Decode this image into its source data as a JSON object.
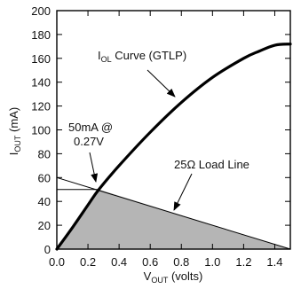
{
  "chart_data": {
    "type": "line",
    "xlabel": {
      "main": "V",
      "sub": "OUT",
      "rest": " (volts)"
    },
    "ylabel": {
      "main": "I",
      "sub": "OUT",
      "rest": " (mA)"
    },
    "xlim": [
      0.0,
      1.5
    ],
    "ylim": [
      0,
      200
    ],
    "x_ticks": [
      "0.0",
      "0.2",
      "0.4",
      "0.6",
      "0.8",
      "1.0",
      "1.2",
      "1.4"
    ],
    "x_tick_values": [
      0.0,
      0.2,
      0.4,
      0.6,
      0.8,
      1.0,
      1.2,
      1.4
    ],
    "y_ticks": [
      "0",
      "20",
      "40",
      "60",
      "80",
      "100",
      "120",
      "140",
      "160",
      "180",
      "200"
    ],
    "y_tick_values": [
      0,
      20,
      40,
      60,
      80,
      100,
      120,
      140,
      160,
      180,
      200
    ],
    "grid": false,
    "series": [
      {
        "name": "I_OL Curve (GTLP)",
        "x": [
          0.0,
          0.1,
          0.2,
          0.27,
          0.4,
          0.6,
          0.8,
          1.0,
          1.2,
          1.3,
          1.4,
          1.5
        ],
        "y": [
          0,
          18,
          37,
          50,
          70,
          98,
          123,
          144,
          160,
          166,
          171,
          172
        ]
      },
      {
        "name": "25Ω Load Line",
        "x": [
          0.0,
          1.5
        ],
        "y": [
          60,
          0
        ]
      }
    ],
    "shaded_region": {
      "vertices_x": [
        0.0,
        0.27,
        1.5
      ],
      "vertices_y": [
        0,
        50,
        0
      ],
      "color": "#b5b5b5"
    },
    "operating_point": {
      "x": 0.27,
      "y": 50
    },
    "annotations": {
      "iol_curve": {
        "main": "I",
        "sub": "OL",
        "rest": " Curve (GTLP)"
      },
      "load_line": "25Ω Load Line",
      "op_point_line1": "50mA @",
      "op_point_line2": "0.27V"
    }
  }
}
